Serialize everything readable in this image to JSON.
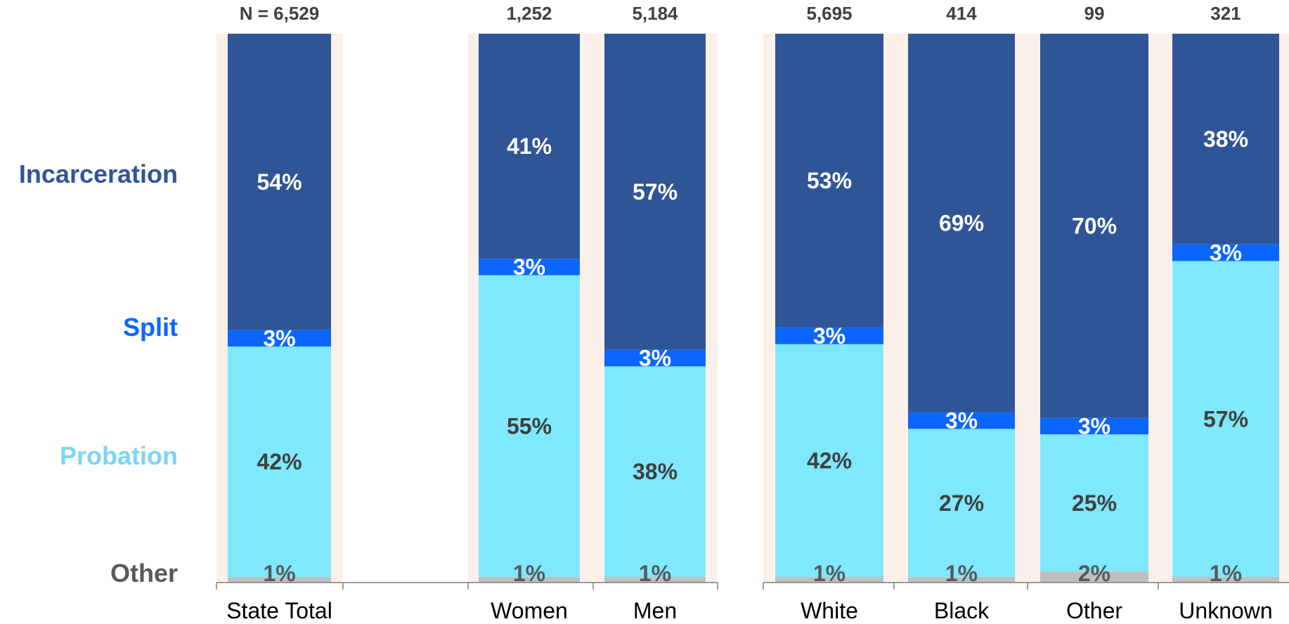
{
  "chart_data": {
    "type": "bar",
    "stacked": true,
    "normalized": true,
    "title": "",
    "xlabel": "",
    "ylabel": "",
    "ylim": [
      0,
      100
    ],
    "grid": false,
    "legend_placement": "left",
    "n_prefix": "N = ",
    "categories": [
      "State Total",
      "Women",
      "Men",
      "White",
      "Black",
      "Other",
      "Unknown"
    ],
    "n_counts": [
      "6,529",
      "1,252",
      "5,184",
      "5,695",
      "414",
      "99",
      "321"
    ],
    "series": [
      {
        "name": "Other",
        "color": "#bfbfbf",
        "label_color": "#595959",
        "values": [
          1,
          1,
          1,
          1,
          1,
          2,
          1
        ]
      },
      {
        "name": "Probation",
        "color": "#7fe8fc",
        "label_color": "#404040",
        "values": [
          42,
          55,
          38,
          42,
          27,
          25,
          57
        ]
      },
      {
        "name": "Split",
        "color": "#0a66ff",
        "label_color": "#ffffff",
        "values": [
          3,
          3,
          3,
          3,
          3,
          3,
          3
        ]
      },
      {
        "name": "Incarceration",
        "color": "#2f5597",
        "label_color": "#ffffff",
        "values": [
          54,
          41,
          57,
          53,
          69,
          70,
          38
        ]
      }
    ],
    "legend": [
      {
        "name": "Incarceration",
        "color": "#2f5597"
      },
      {
        "name": "Split",
        "color": "#0a66ff"
      },
      {
        "name": "Probation",
        "color": "#7ed3f7"
      },
      {
        "name": "Other",
        "color": "#595959"
      }
    ],
    "panel_background": "#faf0e9"
  }
}
